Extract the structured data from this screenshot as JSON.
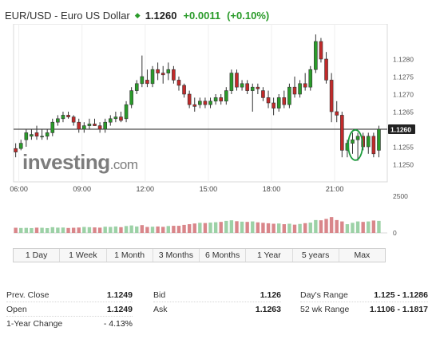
{
  "header": {
    "name": "EUR/USD - Euro US Dollar",
    "arrow": "◆",
    "price": "1.1260",
    "change": "+0.0011",
    "change_pct": "(+0.10%)"
  },
  "chart_data": {
    "type": "candlestick",
    "watermark_word": "investing",
    "watermark_suffix": ".com",
    "ylim": [
      1.1245,
      1.129
    ],
    "y_ticks": [
      "1.1280",
      "1.1275",
      "1.1270",
      "1.1265",
      "1.1260",
      "1.1255",
      "1.1250"
    ],
    "current_price_label": "1.1260",
    "current_price": 1.126,
    "x_time_start": 5.75,
    "x_time_end": 23.5,
    "x_ticks": [
      {
        "t": 6,
        "label": "06:00"
      },
      {
        "t": 9,
        "label": "09:00"
      },
      {
        "t": 12,
        "label": "12:00"
      },
      {
        "t": 15,
        "label": "15:00"
      },
      {
        "t": 18,
        "label": "18:00"
      },
      {
        "t": 21,
        "label": "21:00"
      }
    ],
    "volume_ticks": [
      "2500",
      "0"
    ],
    "volume_max": 2500,
    "highlight_circle_time": 22.1,
    "candles": [
      {
        "t": 5.85,
        "o": 1.12545,
        "h": 1.1256,
        "l": 1.1252,
        "c": 1.12535
      },
      {
        "t": 6.1,
        "o": 1.12545,
        "h": 1.1257,
        "l": 1.1254,
        "c": 1.1256
      },
      {
        "t": 6.35,
        "o": 1.1257,
        "h": 1.126,
        "l": 1.1255,
        "c": 1.1259
      },
      {
        "t": 6.6,
        "o": 1.1258,
        "h": 1.126,
        "l": 1.1257,
        "c": 1.12585
      },
      {
        "t": 6.85,
        "o": 1.1259,
        "h": 1.1261,
        "l": 1.1257,
        "c": 1.1258
      },
      {
        "t": 7.1,
        "o": 1.1258,
        "h": 1.126,
        "l": 1.1257,
        "c": 1.1258
      },
      {
        "t": 7.35,
        "o": 1.1258,
        "h": 1.126,
        "l": 1.1257,
        "c": 1.1259
      },
      {
        "t": 7.6,
        "o": 1.1259,
        "h": 1.1263,
        "l": 1.1258,
        "c": 1.1262
      },
      {
        "t": 7.85,
        "o": 1.1262,
        "h": 1.1264,
        "l": 1.1261,
        "c": 1.1263
      },
      {
        "t": 8.1,
        "o": 1.1263,
        "h": 1.1265,
        "l": 1.1262,
        "c": 1.1264
      },
      {
        "t": 8.35,
        "o": 1.1264,
        "h": 1.1265,
        "l": 1.1263,
        "c": 1.12635
      },
      {
        "t": 8.6,
        "o": 1.12635,
        "h": 1.1264,
        "l": 1.1261,
        "c": 1.1262
      },
      {
        "t": 8.85,
        "o": 1.1262,
        "h": 1.1263,
        "l": 1.1259,
        "c": 1.126
      },
      {
        "t": 9.1,
        "o": 1.126,
        "h": 1.1262,
        "l": 1.1259,
        "c": 1.1261
      },
      {
        "t": 9.35,
        "o": 1.1261,
        "h": 1.1263,
        "l": 1.126,
        "c": 1.12615
      },
      {
        "t": 9.6,
        "o": 1.12615,
        "h": 1.1263,
        "l": 1.1261,
        "c": 1.1261
      },
      {
        "t": 9.85,
        "o": 1.1261,
        "h": 1.1262,
        "l": 1.1259,
        "c": 1.126
      },
      {
        "t": 10.1,
        "o": 1.126,
        "h": 1.1263,
        "l": 1.1259,
        "c": 1.1262
      },
      {
        "t": 10.35,
        "o": 1.1262,
        "h": 1.1264,
        "l": 1.1261,
        "c": 1.1263
      },
      {
        "t": 10.6,
        "o": 1.1263,
        "h": 1.1265,
        "l": 1.1262,
        "c": 1.12635
      },
      {
        "t": 10.85,
        "o": 1.12635,
        "h": 1.1265,
        "l": 1.1262,
        "c": 1.12625
      },
      {
        "t": 11.1,
        "o": 1.1263,
        "h": 1.1268,
        "l": 1.1262,
        "c": 1.1267
      },
      {
        "t": 11.35,
        "o": 1.1267,
        "h": 1.1272,
        "l": 1.1266,
        "c": 1.1271
      },
      {
        "t": 11.6,
        "o": 1.1271,
        "h": 1.1274,
        "l": 1.127,
        "c": 1.1273
      },
      {
        "t": 11.85,
        "o": 1.1273,
        "h": 1.1281,
        "l": 1.1272,
        "c": 1.1275
      },
      {
        "t": 12.1,
        "o": 1.1274,
        "h": 1.1277,
        "l": 1.1272,
        "c": 1.1273
      },
      {
        "t": 12.35,
        "o": 1.1273,
        "h": 1.1278,
        "l": 1.1272,
        "c": 1.1277
      },
      {
        "t": 12.6,
        "o": 1.1277,
        "h": 1.1279,
        "l": 1.1274,
        "c": 1.1276
      },
      {
        "t": 12.85,
        "o": 1.1276,
        "h": 1.1278,
        "l": 1.1273,
        "c": 1.12755
      },
      {
        "t": 13.1,
        "o": 1.1276,
        "h": 1.1279,
        "l": 1.1274,
        "c": 1.1277
      },
      {
        "t": 13.35,
        "o": 1.1277,
        "h": 1.1278,
        "l": 1.1273,
        "c": 1.1274
      },
      {
        "t": 13.6,
        "o": 1.1274,
        "h": 1.1275,
        "l": 1.1271,
        "c": 1.12725
      },
      {
        "t": 13.85,
        "o": 1.12725,
        "h": 1.1273,
        "l": 1.1269,
        "c": 1.127
      },
      {
        "t": 14.1,
        "o": 1.127,
        "h": 1.1271,
        "l": 1.1266,
        "c": 1.1267
      },
      {
        "t": 14.35,
        "o": 1.1267,
        "h": 1.1269,
        "l": 1.1265,
        "c": 1.12665
      },
      {
        "t": 14.6,
        "o": 1.1267,
        "h": 1.1269,
        "l": 1.1266,
        "c": 1.1268
      },
      {
        "t": 14.85,
        "o": 1.1268,
        "h": 1.1269,
        "l": 1.1266,
        "c": 1.1267
      },
      {
        "t": 15.1,
        "o": 1.1267,
        "h": 1.1269,
        "l": 1.1266,
        "c": 1.1268
      },
      {
        "t": 15.35,
        "o": 1.1268,
        "h": 1.127,
        "l": 1.1267,
        "c": 1.1269
      },
      {
        "t": 15.6,
        "o": 1.1269,
        "h": 1.127,
        "l": 1.1267,
        "c": 1.1268
      },
      {
        "t": 15.85,
        "o": 1.1268,
        "h": 1.1272,
        "l": 1.1267,
        "c": 1.1271
      },
      {
        "t": 16.1,
        "o": 1.1271,
        "h": 1.1277,
        "l": 1.127,
        "c": 1.1276
      },
      {
        "t": 16.35,
        "o": 1.1276,
        "h": 1.1277,
        "l": 1.1271,
        "c": 1.1272
      },
      {
        "t": 16.6,
        "o": 1.1272,
        "h": 1.1274,
        "l": 1.1271,
        "c": 1.1273
      },
      {
        "t": 16.85,
        "o": 1.1273,
        "h": 1.1274,
        "l": 1.127,
        "c": 1.1271
      },
      {
        "t": 17.1,
        "o": 1.1271,
        "h": 1.1273,
        "l": 1.1265,
        "c": 1.1272
      },
      {
        "t": 17.35,
        "o": 1.1272,
        "h": 1.1273,
        "l": 1.127,
        "c": 1.12715
      },
      {
        "t": 17.6,
        "o": 1.1271,
        "h": 1.1272,
        "l": 1.1268,
        "c": 1.1269
      },
      {
        "t": 17.85,
        "o": 1.1269,
        "h": 1.1271,
        "l": 1.1266,
        "c": 1.12675
      },
      {
        "t": 18.1,
        "o": 1.12675,
        "h": 1.1269,
        "l": 1.1264,
        "c": 1.1266
      },
      {
        "t": 18.35,
        "o": 1.1266,
        "h": 1.127,
        "l": 1.1265,
        "c": 1.1269
      },
      {
        "t": 18.6,
        "o": 1.1269,
        "h": 1.1271,
        "l": 1.1266,
        "c": 1.1267
      },
      {
        "t": 18.85,
        "o": 1.1267,
        "h": 1.1273,
        "l": 1.1266,
        "c": 1.1272
      },
      {
        "t": 19.1,
        "o": 1.1272,
        "h": 1.1275,
        "l": 1.1269,
        "c": 1.127
      },
      {
        "t": 19.35,
        "o": 1.127,
        "h": 1.1274,
        "l": 1.1269,
        "c": 1.1273
      },
      {
        "t": 19.6,
        "o": 1.1273,
        "h": 1.1276,
        "l": 1.1271,
        "c": 1.1272
      },
      {
        "t": 19.85,
        "o": 1.1272,
        "h": 1.1278,
        "l": 1.1271,
        "c": 1.1277
      },
      {
        "t": 20.1,
        "o": 1.1277,
        "h": 1.1287,
        "l": 1.1276,
        "c": 1.1285
      },
      {
        "t": 20.35,
        "o": 1.1285,
        "h": 1.1286,
        "l": 1.1279,
        "c": 1.128
      },
      {
        "t": 20.6,
        "o": 1.128,
        "h": 1.1282,
        "l": 1.1273,
        "c": 1.1274
      },
      {
        "t": 20.85,
        "o": 1.1274,
        "h": 1.1276,
        "l": 1.1262,
        "c": 1.1265
      },
      {
        "t": 21.1,
        "o": 1.1265,
        "h": 1.1268,
        "l": 1.1262,
        "c": 1.1264
      },
      {
        "t": 21.35,
        "o": 1.1264,
        "h": 1.1265,
        "l": 1.1252,
        "c": 1.1254
      },
      {
        "t": 21.6,
        "o": 1.1254,
        "h": 1.1257,
        "l": 1.1252,
        "c": 1.1256
      },
      {
        "t": 21.85,
        "o": 1.1256,
        "h": 1.1259,
        "l": 1.1253,
        "c": 1.1257
      },
      {
        "t": 22.1,
        "o": 1.1257,
        "h": 1.1259,
        "l": 1.1251,
        "c": 1.1258
      },
      {
        "t": 22.35,
        "o": 1.1258,
        "h": 1.1259,
        "l": 1.1254,
        "c": 1.1255
      },
      {
        "t": 22.6,
        "o": 1.1255,
        "h": 1.1259,
        "l": 1.1253,
        "c": 1.1258
      },
      {
        "t": 22.85,
        "o": 1.1258,
        "h": 1.1259,
        "l": 1.1252,
        "c": 1.1253
      },
      {
        "t": 23.1,
        "o": 1.1254,
        "h": 1.1261,
        "l": 1.1252,
        "c": 1.126
      }
    ],
    "volume": [
      {
        "t": 5.85,
        "v": 450,
        "up": false
      },
      {
        "t": 6.1,
        "v": 430,
        "up": true
      },
      {
        "t": 6.35,
        "v": 440,
        "up": true
      },
      {
        "t": 6.6,
        "v": 420,
        "up": true
      },
      {
        "t": 6.85,
        "v": 460,
        "up": false
      },
      {
        "t": 7.1,
        "v": 450,
        "up": true
      },
      {
        "t": 7.35,
        "v": 420,
        "up": true
      },
      {
        "t": 7.6,
        "v": 500,
        "up": true
      },
      {
        "t": 7.85,
        "v": 460,
        "up": true
      },
      {
        "t": 8.1,
        "v": 470,
        "up": true
      },
      {
        "t": 8.35,
        "v": 430,
        "up": false
      },
      {
        "t": 8.6,
        "v": 450,
        "up": false
      },
      {
        "t": 8.85,
        "v": 470,
        "up": false
      },
      {
        "t": 9.1,
        "v": 520,
        "up": true
      },
      {
        "t": 9.35,
        "v": 500,
        "up": true
      },
      {
        "t": 9.6,
        "v": 480,
        "up": false
      },
      {
        "t": 9.85,
        "v": 460,
        "up": false
      },
      {
        "t": 10.1,
        "v": 540,
        "up": true
      },
      {
        "t": 10.35,
        "v": 520,
        "up": true
      },
      {
        "t": 10.6,
        "v": 560,
        "up": true
      },
      {
        "t": 10.85,
        "v": 500,
        "up": false
      },
      {
        "t": 11.1,
        "v": 600,
        "up": true
      },
      {
        "t": 11.35,
        "v": 650,
        "up": true
      },
      {
        "t": 11.6,
        "v": 560,
        "up": true
      },
      {
        "t": 11.85,
        "v": 680,
        "up": false
      },
      {
        "t": 12.1,
        "v": 520,
        "up": false
      },
      {
        "t": 12.35,
        "v": 540,
        "up": true
      },
      {
        "t": 12.6,
        "v": 560,
        "up": false
      },
      {
        "t": 12.85,
        "v": 530,
        "up": false
      },
      {
        "t": 13.1,
        "v": 600,
        "up": true
      },
      {
        "t": 13.35,
        "v": 620,
        "up": false
      },
      {
        "t": 13.6,
        "v": 620,
        "up": false
      },
      {
        "t": 13.85,
        "v": 700,
        "up": false
      },
      {
        "t": 14.1,
        "v": 760,
        "up": false
      },
      {
        "t": 14.35,
        "v": 820,
        "up": false
      },
      {
        "t": 14.6,
        "v": 880,
        "up": true
      },
      {
        "t": 14.85,
        "v": 860,
        "up": false
      },
      {
        "t": 15.1,
        "v": 900,
        "up": true
      },
      {
        "t": 15.35,
        "v": 930,
        "up": true
      },
      {
        "t": 15.6,
        "v": 960,
        "up": false
      },
      {
        "t": 15.85,
        "v": 1050,
        "up": true
      },
      {
        "t": 16.1,
        "v": 1100,
        "up": true
      },
      {
        "t": 16.35,
        "v": 1020,
        "up": false
      },
      {
        "t": 16.6,
        "v": 980,
        "up": true
      },
      {
        "t": 16.85,
        "v": 960,
        "up": false
      },
      {
        "t": 17.1,
        "v": 1000,
        "up": true
      },
      {
        "t": 17.35,
        "v": 920,
        "up": false
      },
      {
        "t": 17.6,
        "v": 880,
        "up": false
      },
      {
        "t": 17.85,
        "v": 840,
        "up": false
      },
      {
        "t": 18.1,
        "v": 800,
        "up": false
      },
      {
        "t": 18.35,
        "v": 820,
        "up": true
      },
      {
        "t": 18.6,
        "v": 760,
        "up": false
      },
      {
        "t": 18.85,
        "v": 800,
        "up": true
      },
      {
        "t": 19.1,
        "v": 720,
        "up": false
      },
      {
        "t": 19.35,
        "v": 780,
        "up": true
      },
      {
        "t": 19.6,
        "v": 850,
        "up": false
      },
      {
        "t": 19.85,
        "v": 900,
        "up": true
      },
      {
        "t": 20.1,
        "v": 1120,
        "up": true
      },
      {
        "t": 20.35,
        "v": 1100,
        "up": false
      },
      {
        "t": 20.6,
        "v": 1220,
        "up": false
      },
      {
        "t": 20.85,
        "v": 1380,
        "up": false
      },
      {
        "t": 21.1,
        "v": 1120,
        "up": false
      },
      {
        "t": 21.35,
        "v": 1000,
        "up": false
      },
      {
        "t": 21.6,
        "v": 760,
        "up": true
      },
      {
        "t": 21.85,
        "v": 880,
        "up": true
      },
      {
        "t": 22.1,
        "v": 1000,
        "up": true
      },
      {
        "t": 22.35,
        "v": 960,
        "up": false
      },
      {
        "t": 22.6,
        "v": 1000,
        "up": true
      },
      {
        "t": 22.85,
        "v": 1080,
        "up": false
      },
      {
        "t": 23.1,
        "v": 1050,
        "up": true
      }
    ],
    "colors": {
      "up": "#2a9b2a",
      "down": "#c12a2a",
      "vol_up": "#9cd1a6",
      "vol_down": "#d9868a",
      "circle": "#1b9b3b"
    }
  },
  "timeframes": [
    "1 Day",
    "1 Week",
    "1 Month",
    "3 Months",
    "6 Months",
    "1 Year",
    "5 years",
    "Max"
  ],
  "stats": {
    "col1": [
      {
        "label": "Prev. Close",
        "value": "1.1249"
      },
      {
        "label": "Open",
        "value": "1.1249"
      },
      {
        "label": "1-Year Change",
        "value": "- 4.13%"
      }
    ],
    "col2": [
      {
        "label": "Bid",
        "value": "1.126"
      },
      {
        "label": "Ask",
        "value": "1.1263"
      }
    ],
    "col3": [
      {
        "label": "Day's Range",
        "value": "1.125 - 1.1286"
      },
      {
        "label": "52 wk Range",
        "value": "1.1106 - 1.1817"
      }
    ]
  }
}
